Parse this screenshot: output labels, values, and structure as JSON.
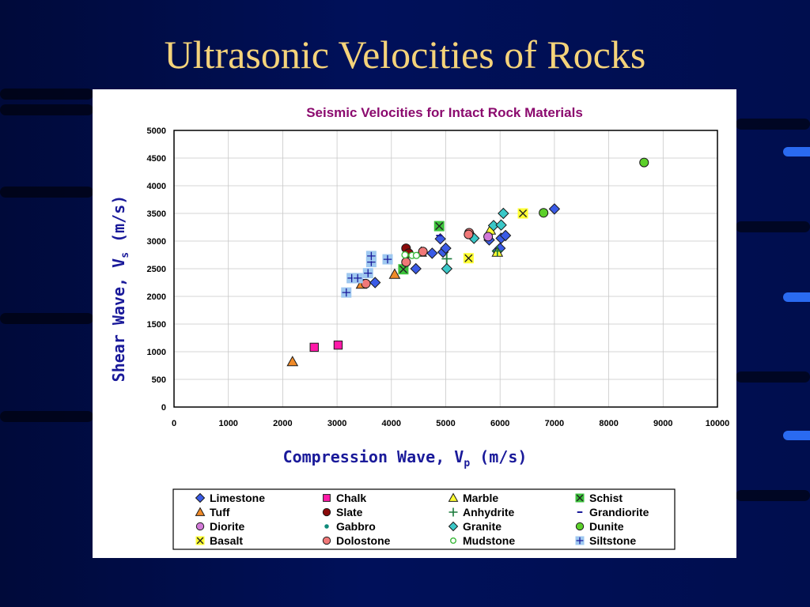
{
  "slide": {
    "title": "Ultrasonic Velocities of Rocks"
  },
  "chart_data": {
    "type": "scatter",
    "title": "Seismic Velocities for Intact Rock Materials",
    "xlabel": {
      "main": "Compression Wave, V",
      "sub": "p",
      "unit": " (m/s)"
    },
    "ylabel": {
      "main": "Shear Wave, V",
      "sub": "s",
      "unit": " (m/s)"
    },
    "xlim": [
      0,
      10000
    ],
    "ylim": [
      0,
      5000
    ],
    "xticks": [
      0,
      1000,
      2000,
      3000,
      4000,
      5000,
      6000,
      7000,
      8000,
      9000,
      10000
    ],
    "yticks": [
      0,
      500,
      1000,
      1500,
      2000,
      2500,
      3000,
      3500,
      4000,
      4500,
      5000
    ],
    "grid": true,
    "legend_position": "bottom",
    "series": [
      {
        "name": "Limestone",
        "marker": "diamond",
        "color": "#3a5be6",
        "points": [
          [
            3700,
            2250
          ],
          [
            4450,
            2500
          ],
          [
            4750,
            2780
          ],
          [
            4900,
            3040
          ],
          [
            4950,
            2800
          ],
          [
            5000,
            2870
          ],
          [
            5800,
            3020
          ],
          [
            5950,
            2820
          ],
          [
            6000,
            2870
          ],
          [
            6020,
            3050
          ],
          [
            6100,
            3100
          ],
          [
            7000,
            3580
          ]
        ]
      },
      {
        "name": "Chalk",
        "marker": "square",
        "color": "#ff1aa8",
        "points": [
          [
            2580,
            1080
          ],
          [
            3020,
            1120
          ]
        ]
      },
      {
        "name": "Marble",
        "marker": "triangle",
        "color": "#ffff33",
        "points": [
          [
            5820,
            3200
          ],
          [
            5950,
            2800
          ]
        ]
      },
      {
        "name": "Schist",
        "marker": "xsquare",
        "color": "#3cc23c",
        "points": [
          [
            4880,
            3270
          ],
          [
            4220,
            2490
          ]
        ]
      },
      {
        "name": "Tuff",
        "marker": "triangle",
        "color": "#f08a28",
        "points": [
          [
            2180,
            820
          ],
          [
            3450,
            2220
          ],
          [
            4060,
            2400
          ],
          [
            4550,
            2800
          ]
        ]
      },
      {
        "name": "Slate",
        "marker": "circle",
        "color": "#8a0a0a",
        "points": [
          [
            4270,
            2870
          ],
          [
            4320,
            2780
          ]
        ]
      },
      {
        "name": "Anhydrite",
        "marker": "plus",
        "color": "#1a7a3a",
        "points": [
          [
            5020,
            2680
          ],
          [
            5950,
            2820
          ]
        ]
      },
      {
        "name": "Grandiorite",
        "marker": "dash",
        "color": "#1a1a9a",
        "points": [
          [
            3450,
            2300
          ],
          [
            3950,
            2640
          ],
          [
            4880,
            3100
          ]
        ]
      },
      {
        "name": "Diorite",
        "marker": "circle",
        "color": "#d27ad8",
        "points": [
          [
            5780,
            3080
          ]
        ]
      },
      {
        "name": "Gabbro",
        "marker": "dot",
        "color": "#0f8a7a",
        "points": [
          [
            6430,
            3460
          ]
        ]
      },
      {
        "name": "Granite",
        "marker": "diamond",
        "color": "#3ac8c8",
        "points": [
          [
            5020,
            2500
          ],
          [
            5520,
            3050
          ],
          [
            5880,
            3280
          ],
          [
            6020,
            3290
          ],
          [
            6060,
            3500
          ]
        ]
      },
      {
        "name": "Dunite",
        "marker": "circle",
        "color": "#5cd02a",
        "points": [
          [
            6800,
            3510
          ],
          [
            8650,
            4420
          ]
        ]
      },
      {
        "name": "Basalt",
        "marker": "xsquare",
        "color": "#ffff33",
        "points": [
          [
            5420,
            2690
          ],
          [
            6420,
            3500
          ]
        ]
      },
      {
        "name": "Dolostone",
        "marker": "circle",
        "color": "#f07878",
        "points": [
          [
            3530,
            2230
          ],
          [
            4270,
            2620
          ],
          [
            4580,
            2810
          ],
          [
            5430,
            3150
          ],
          [
            5420,
            3120
          ]
        ]
      },
      {
        "name": "Mudstone",
        "marker": "ocircle",
        "color": "#3ab83a",
        "points": [
          [
            4250,
            2750
          ],
          [
            4380,
            2740
          ],
          [
            4460,
            2740
          ]
        ]
      },
      {
        "name": "Siltstone",
        "marker": "plussquare",
        "color": "#9ec8f0",
        "points": [
          [
            3170,
            2070
          ],
          [
            3270,
            2330
          ],
          [
            3380,
            2330
          ],
          [
            3570,
            2420
          ],
          [
            3630,
            2620
          ],
          [
            3630,
            2730
          ],
          [
            3930,
            2670
          ]
        ]
      }
    ]
  }
}
